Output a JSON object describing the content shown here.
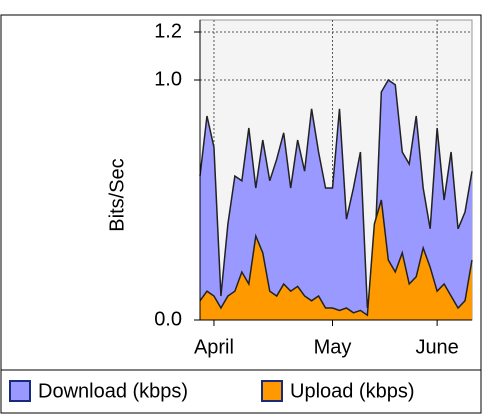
{
  "chart_data": {
    "type": "area",
    "y_label": "Bits/Sec",
    "x": [
      0,
      1,
      2,
      3,
      4,
      5,
      6,
      7,
      8,
      9,
      10,
      11,
      12,
      13,
      14,
      15,
      16,
      17,
      18,
      19,
      20,
      21,
      22,
      23,
      24,
      25,
      26,
      27,
      28,
      29,
      30,
      31,
      32,
      33,
      34,
      35,
      36,
      37,
      38,
      39
    ],
    "xlim": [
      0,
      39
    ],
    "xticks": [
      {
        "value": 2,
        "label": "April"
      },
      {
        "value": 19,
        "label": "May"
      },
      {
        "value": 34,
        "label": "June"
      }
    ],
    "ylim": [
      0,
      1.25
    ],
    "yticks": [
      {
        "value": 0,
        "label": "0.0"
      },
      {
        "value": 1,
        "label": "1.0"
      },
      1.2
    ],
    "grid": true,
    "series": [
      {
        "name": "Download (kbps)",
        "color": "#9999ff",
        "values": [
          0.6,
          0.85,
          0.72,
          0.1,
          0.4,
          0.6,
          0.58,
          0.8,
          0.55,
          0.75,
          0.58,
          0.67,
          0.78,
          0.55,
          0.75,
          0.62,
          0.88,
          0.7,
          0.55,
          0.55,
          0.88,
          0.42,
          0.55,
          0.7,
          0.05,
          0.25,
          0.95,
          1.0,
          0.98,
          0.7,
          0.65,
          0.85,
          0.55,
          0.38,
          0.8,
          0.5,
          0.7,
          0.38,
          0.45,
          0.62
        ]
      },
      {
        "name": "Upload (kbps)",
        "color": "#ff9900",
        "values": [
          0.08,
          0.12,
          0.1,
          0.05,
          0.1,
          0.12,
          0.2,
          0.15,
          0.35,
          0.28,
          0.12,
          0.1,
          0.15,
          0.12,
          0.14,
          0.1,
          0.08,
          0.1,
          0.05,
          0.05,
          0.04,
          0.05,
          0.03,
          0.04,
          0.02,
          0.4,
          0.5,
          0.25,
          0.2,
          0.28,
          0.15,
          0.18,
          0.3,
          0.22,
          0.12,
          0.15,
          0.1,
          0.05,
          0.08,
          0.25
        ]
      }
    ]
  }
}
